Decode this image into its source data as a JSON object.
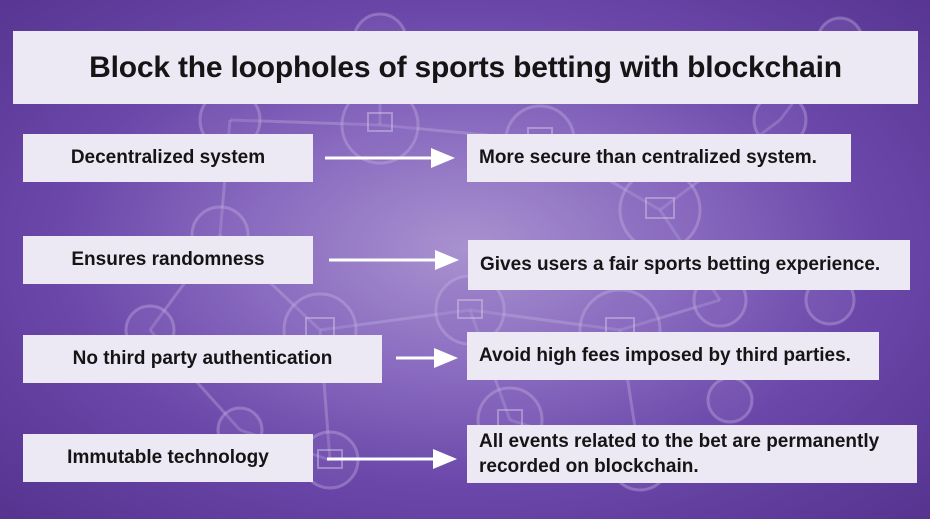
{
  "title": "Block the loopholes of sports betting with blockchain",
  "rows": [
    {
      "feature": "Decentralized system",
      "benefit": "More secure than centralized system."
    },
    {
      "feature": "Ensures randomness",
      "benefit": "Gives users a fair sports betting experience."
    },
    {
      "feature": "No third party authentication",
      "benefit": "Avoid high fees imposed by third parties."
    },
    {
      "feature": "Immutable technology",
      "benefit": "All events related to the bet are permanently recorded on blockchain."
    }
  ],
  "colors": {
    "background": "#6a47a9",
    "box": "#ece8f4",
    "arrow": "#ffffff",
    "text": "#151515"
  },
  "icons": {
    "background_nodes": "computer-monitor-icon",
    "arrows": "right-arrow-icon"
  }
}
